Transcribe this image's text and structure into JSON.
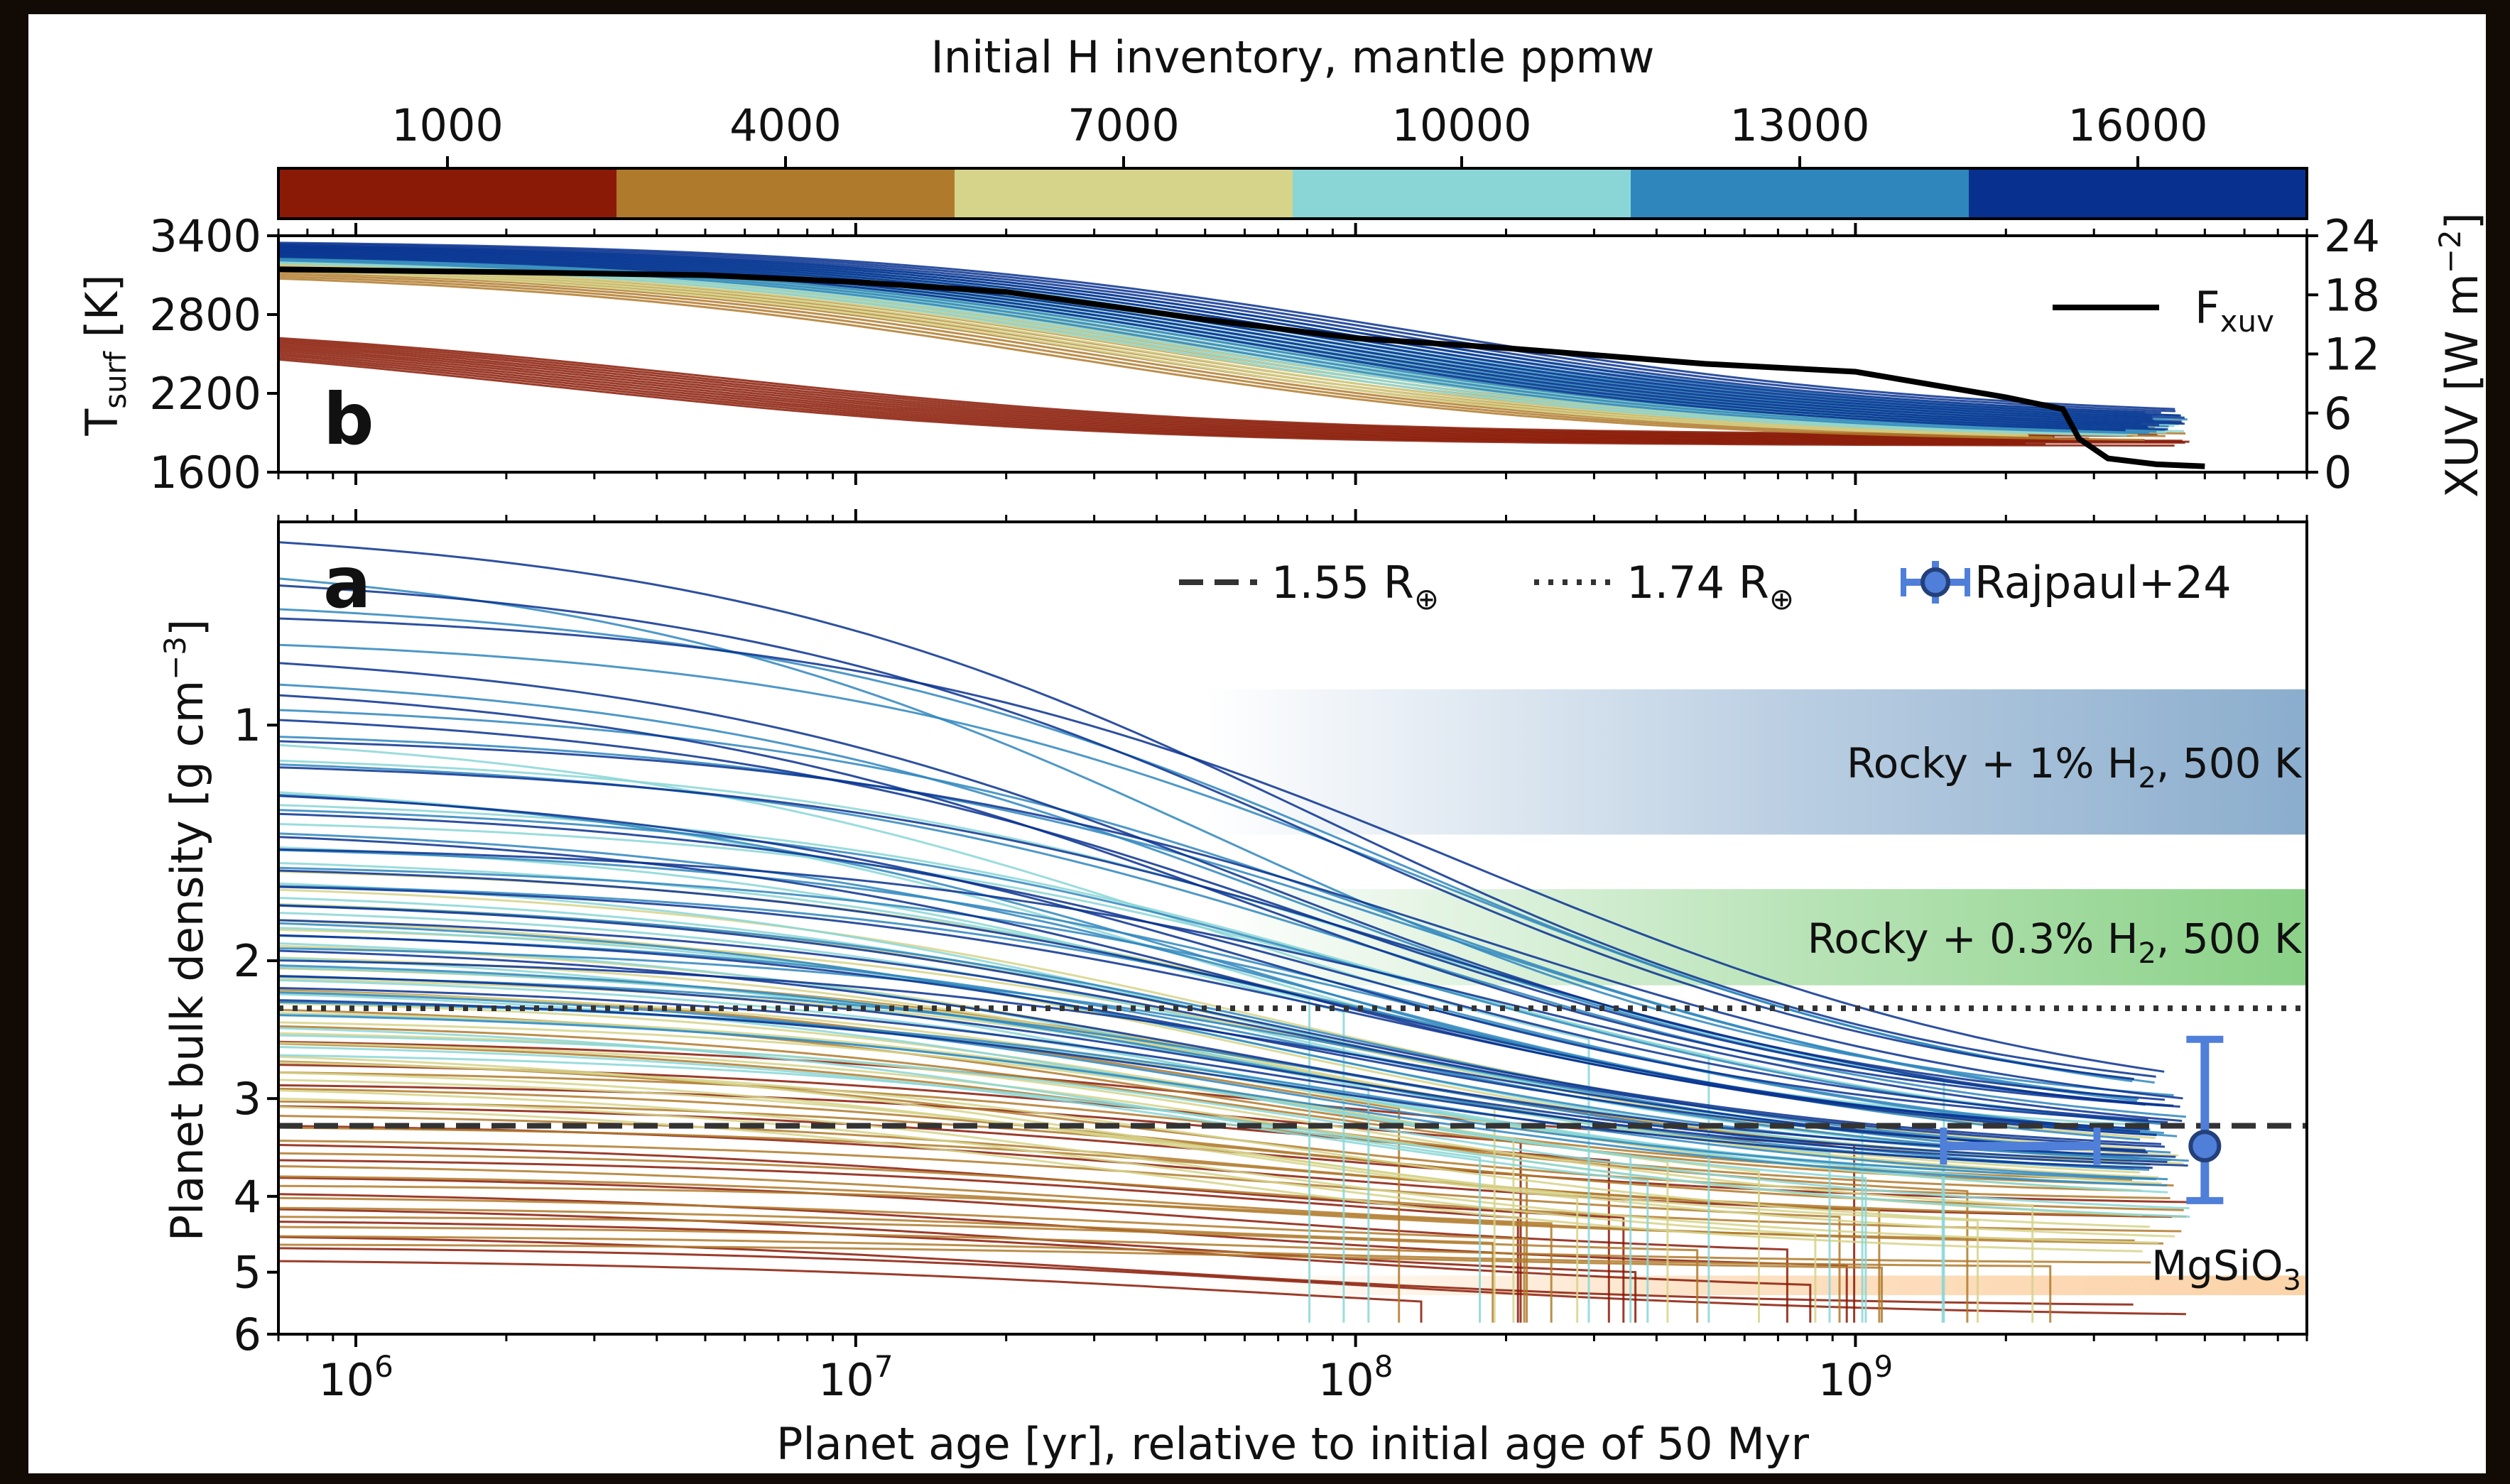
{
  "colorbar": {
    "title": "Initial H inventory, mantle ppmw",
    "ticks": [
      "1000",
      "4000",
      "7000",
      "10000",
      "13000",
      "16000"
    ],
    "colors": [
      "#8a1a06",
      "#b07a2c",
      "#d6d48a",
      "#8ad6d6",
      "#2f86bd",
      "#08318f"
    ]
  },
  "chart_data": [
    {
      "panel": "b",
      "type": "line",
      "panel_label": "b",
      "ylabel": "T",
      "ylabel_sub": "surf",
      "ylabel_unit": "[K]",
      "ylim": [
        1600,
        3400
      ],
      "yticks": [
        "3400",
        "2800",
        "2200",
        "1600"
      ],
      "y2label": "XUV [W m",
      "y2label_sup": "−2",
      "y2label_end": "]",
      "y2lim": [
        0,
        24
      ],
      "y2ticks": [
        "24",
        "18",
        "12",
        "6",
        "0"
      ],
      "xscale": "log",
      "xlim": [
        700000,
        8000000000
      ],
      "legend": {
        "label": "F",
        "label_sub": "xuv",
        "position": "upper right"
      },
      "series": [
        {
          "name": "Fxuv",
          "axis": "right",
          "color": "#000000",
          "x": [
            700000,
            1000000,
            2000000,
            5000000,
            10000000,
            20000000,
            50000000,
            100000000,
            200000000,
            500000000,
            1000000000,
            2000000000,
            2600000000,
            2800000000,
            3200000000,
            4000000000,
            5000000000
          ],
          "values": [
            20.6,
            20.5,
            20.3,
            20.0,
            19.3,
            18.3,
            15.5,
            13.6,
            12.6,
            11.0,
            10.2,
            7.6,
            6.4,
            3.4,
            1.4,
            0.8,
            0.6
          ]
        }
      ],
      "ensemble_envelope": {
        "1000": {
          "start": [
            2780,
            2700
          ],
          "end": [
            1880,
            1800
          ]
        },
        "4000": {
          "start": [
            3300,
            3150
          ],
          "end": [
            1920,
            1820
          ]
        },
        "7000": {
          "start": [
            3320,
            3200
          ],
          "end": [
            1940,
            1830
          ]
        },
        "10000": {
          "start": [
            3340,
            3250
          ],
          "end": [
            1960,
            1840
          ]
        },
        "13000": {
          "start": [
            3350,
            3260
          ],
          "end": [
            1980,
            1850
          ]
        },
        "16000": {
          "start": [
            3370,
            3280
          ],
          "end": [
            2000,
            1860
          ]
        }
      }
    },
    {
      "panel": "a",
      "type": "line",
      "panel_label": "a",
      "ylabel": "Planet bulk density [g cm",
      "ylabel_sup": "−3",
      "ylabel_end": "]",
      "xlabel": "Planet age [yr], relative to initial age of 50 Myr",
      "xscale": "log",
      "yscale": "log",
      "xlim": [
        700000,
        8000000000
      ],
      "ylim": [
        0.55,
        6.0
      ],
      "yticks": [
        "1",
        "2",
        "3",
        "4",
        "5",
        "6"
      ],
      "xticks": [
        {
          "base": "10",
          "exp": "6"
        },
        {
          "base": "10",
          "exp": "7"
        },
        {
          "base": "10",
          "exp": "8"
        },
        {
          "base": "10",
          "exp": "9"
        }
      ],
      "reference_lines": [
        {
          "label": "1.55 R",
          "symbol": "⊕",
          "style": "dashed",
          "value": 3.25
        },
        {
          "label": "1.74 R",
          "symbol": "⊕",
          "style": "dotted",
          "value": 2.3
        }
      ],
      "observation": {
        "label": "Rajpaul+24",
        "color": "#4f7fd9",
        "x": 5000000000,
        "x_err": [
          1500000000,
          2500000000
        ],
        "y": 3.45,
        "y_err": [
          2.52,
          4.05
        ]
      },
      "bands": [
        {
          "label_pre": "Rocky + 1% H",
          "label_sub": "2",
          "label_post": ", 500 K",
          "color": "#7ea4c8",
          "y_range": [
            0.9,
            1.38
          ],
          "x_start": 50000000
        },
        {
          "label_pre": "Rocky + 0.3% H",
          "label_sub": "2",
          "label_post": ", 500 K",
          "color": "#7dcc7a",
          "y_range": [
            1.62,
            2.15
          ],
          "x_start": 50000000
        },
        {
          "label_pre": "MgSiO",
          "label_sub": "3",
          "label_post": "",
          "color": "#fbd3a8",
          "y_range": [
            5.05,
            5.35
          ],
          "x_start": 50000000
        }
      ],
      "ensemble_envelope": {
        "1000": {
          "start_range": [
            2.5,
            4.8
          ],
          "end_range": [
            3.6,
            5.9
          ]
        },
        "4000": {
          "start_range": [
            2.0,
            4.6
          ],
          "end_range": [
            3.8,
            5.0
          ]
        },
        "7000": {
          "start_range": [
            1.5,
            3.0
          ],
          "end_range": [
            3.6,
            4.8
          ]
        },
        "10000": {
          "start_range": [
            1.0,
            2.6
          ],
          "end_range": [
            3.3,
            4.4
          ]
        },
        "13000": {
          "start_range": [
            0.6,
            2.3
          ],
          "end_range": [
            3.2,
            4.0
          ]
        },
        "16000": {
          "start_range": [
            0.55,
            2.2
          ],
          "end_range": [
            3.15,
            3.8
          ]
        }
      }
    }
  ]
}
